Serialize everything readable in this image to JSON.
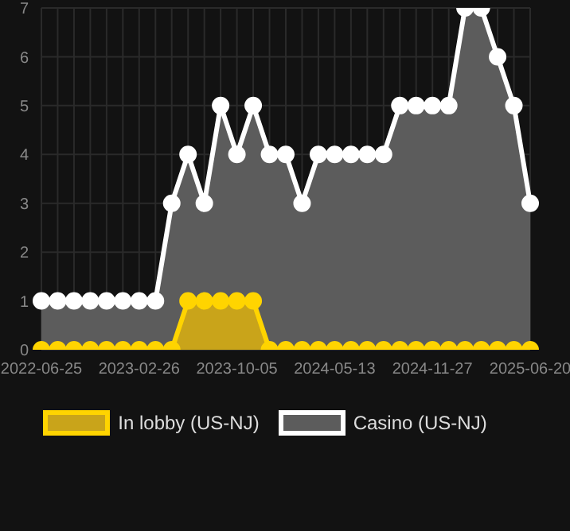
{
  "chart_data": {
    "type": "area",
    "categories": [
      "2022-06-25",
      null,
      null,
      null,
      null,
      null,
      "2023-02-26",
      null,
      null,
      null,
      null,
      null,
      "2023-10-05",
      null,
      null,
      null,
      null,
      null,
      "2024-05-13",
      null,
      null,
      null,
      null,
      null,
      "2024-11-27",
      null,
      null,
      null,
      null,
      null,
      "2025-06-20"
    ],
    "series": [
      {
        "name": "In lobby (US-NJ)",
        "color": "#ffd400",
        "values": [
          0,
          0,
          0,
          0,
          0,
          0,
          0,
          0,
          0,
          1,
          1,
          1,
          1,
          1,
          0,
          0,
          0,
          0,
          0,
          0,
          0,
          0,
          0,
          0,
          0,
          0,
          0,
          0,
          0,
          0,
          0
        ]
      },
      {
        "name": "Casino (US-NJ)",
        "color": "#ffffff",
        "values": [
          1,
          1,
          1,
          1,
          1,
          1,
          1,
          1,
          3,
          4,
          3,
          5,
          4,
          5,
          4,
          4,
          3,
          4,
          4,
          4,
          4,
          4,
          5,
          5,
          5,
          5,
          7,
          7,
          6,
          5,
          3
        ]
      }
    ],
    "ylim": [
      0,
      7
    ],
    "yticks": [
      0,
      1,
      2,
      3,
      4,
      5,
      6,
      7
    ],
    "grid": true,
    "legend": "bottom",
    "marker": "circle"
  }
}
